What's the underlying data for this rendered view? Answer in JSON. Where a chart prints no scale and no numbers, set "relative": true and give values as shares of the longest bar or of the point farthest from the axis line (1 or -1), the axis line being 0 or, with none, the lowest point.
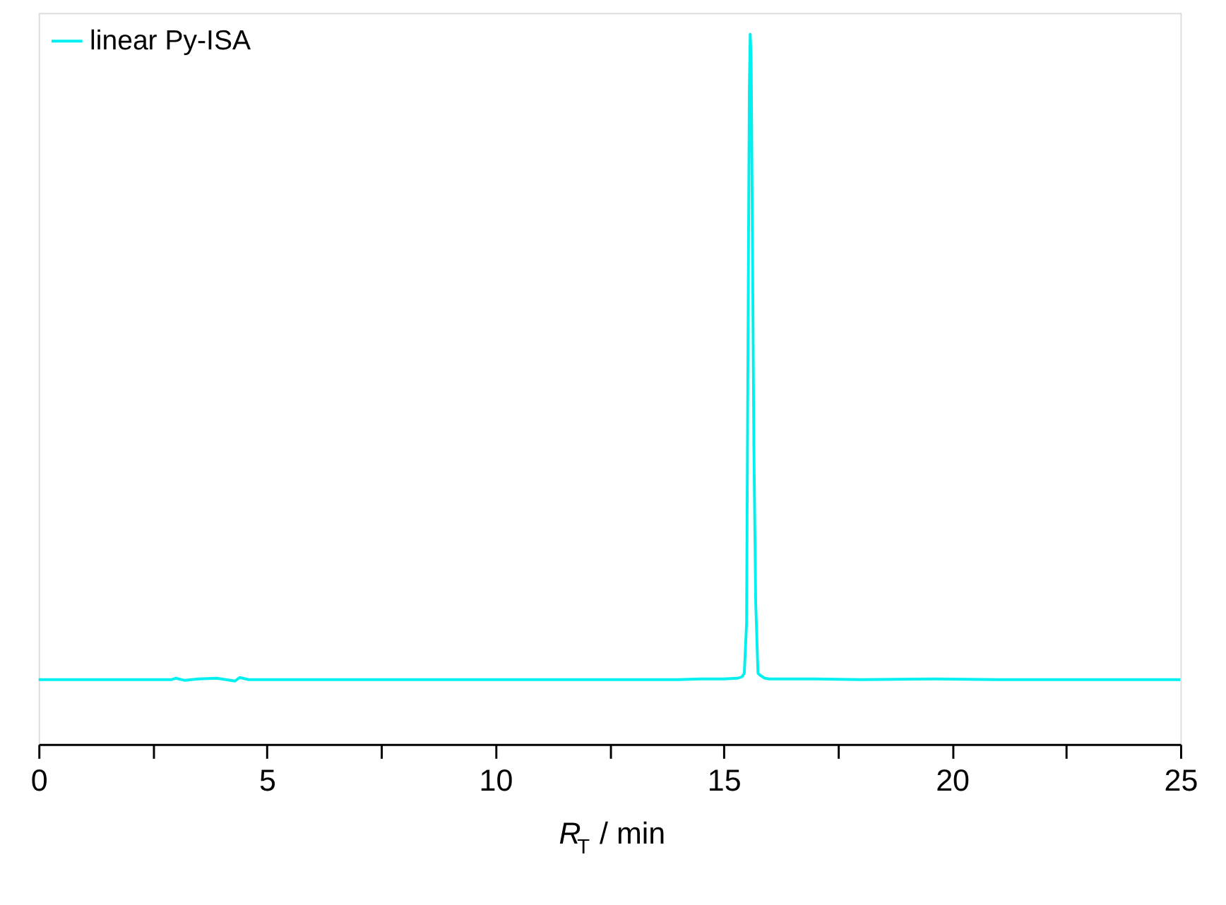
{
  "chart_data": {
    "type": "line",
    "relative": true,
    "xlabel": "R$_{T}$ / min",
    "legend": "top left",
    "line_style": "solid",
    "marker": "none",
    "xlim": [
      0,
      25
    ],
    "xticks": [
      0,
      {
        "value": 2.5,
        "label": null
      },
      5,
      {
        "value": 7.5,
        "label": null
      },
      10,
      {
        "value": 12.5,
        "label": null
      },
      15,
      {
        "value": 17.5,
        "label": null
      },
      20,
      {
        "value": 22.5,
        "label": null
      },
      25
    ],
    "series": [
      {
        "name": "linear Py-ISA",
        "color": "#00f0f0",
        "x": [
          0,
          1,
          2,
          2.9,
          3.0,
          3.2,
          3.5,
          3.9,
          4.3,
          4.4,
          4.6,
          6,
          8,
          10,
          12,
          14,
          14.5,
          15.0,
          15.3,
          15.4,
          15.45,
          15.5,
          15.53,
          15.56,
          15.58,
          15.6,
          15.63,
          15.66,
          15.7,
          15.75,
          15.8,
          15.9,
          16.0,
          17,
          18,
          19.6,
          21,
          23,
          25
        ],
        "values": [
          0.091,
          0.091,
          0.091,
          0.091,
          0.093,
          0.09,
          0.092,
          0.093,
          0.089,
          0.094,
          0.091,
          0.091,
          0.091,
          0.091,
          0.091,
          0.091,
          0.092,
          0.092,
          0.093,
          0.095,
          0.1,
          0.17,
          0.55,
          0.92,
          1.0,
          0.97,
          0.7,
          0.42,
          0.2,
          0.1,
          0.097,
          0.093,
          0.092,
          0.092,
          0.091,
          0.092,
          0.091,
          0.091,
          0.091
        ]
      }
    ]
  }
}
